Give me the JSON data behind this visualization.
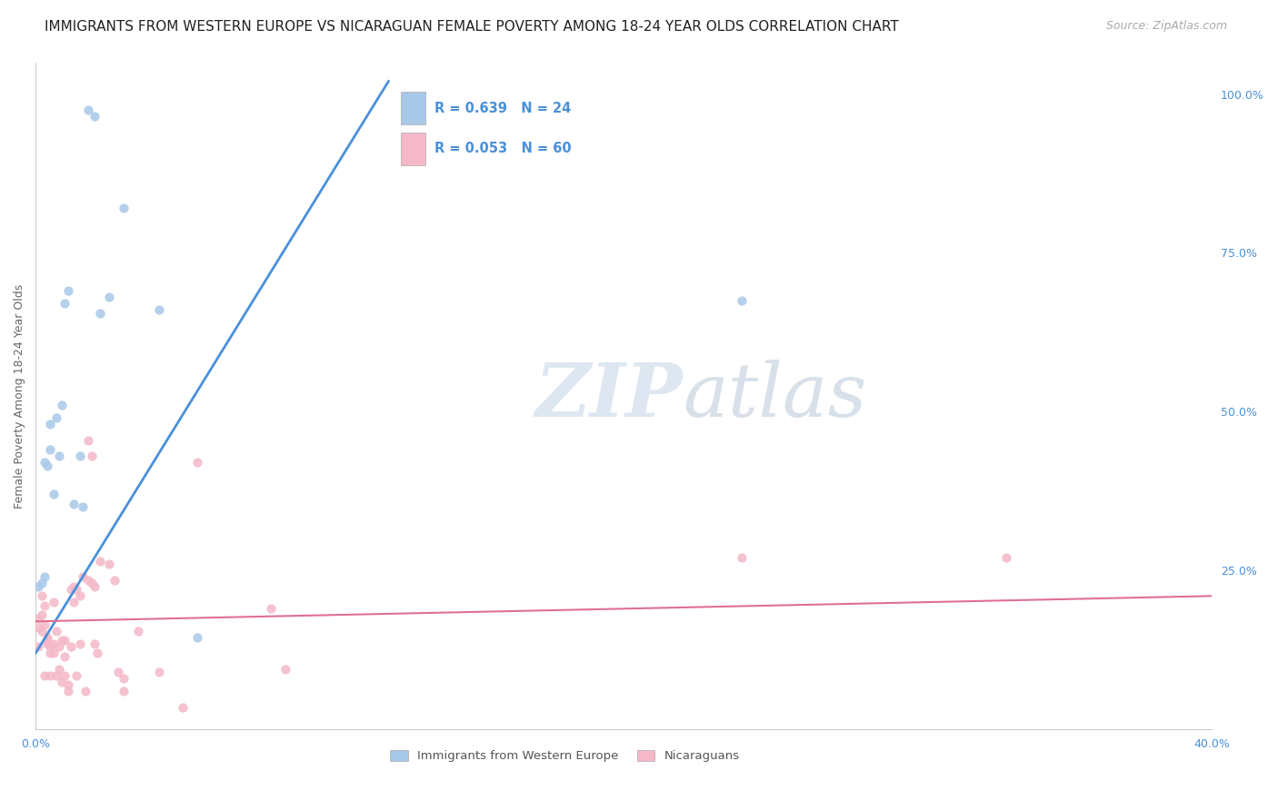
{
  "title": "IMMIGRANTS FROM WESTERN EUROPE VS NICARAGUAN FEMALE POVERTY AMONG 18-24 YEAR OLDS CORRELATION CHART",
  "source": "Source: ZipAtlas.com",
  "ylabel": "Female Poverty Among 18-24 Year Olds",
  "xlim": [
    0.0,
    0.4
  ],
  "ylim": [
    0.0,
    1.05
  ],
  "xtick_positions": [
    0.0,
    0.1,
    0.2,
    0.3,
    0.4
  ],
  "xticklabels": [
    "0.0%",
    "",
    "",
    "",
    "40.0%"
  ],
  "ytick_positions": [
    0.0,
    0.25,
    0.5,
    0.75,
    1.0
  ],
  "yticklabels_right": [
    "",
    "25.0%",
    "50.0%",
    "75.0%",
    "100.0%"
  ],
  "watermark_zip": "ZIP",
  "watermark_atlas": "atlas",
  "blue_color": "#a8c8e8",
  "pink_color": "#f4b8c8",
  "blue_line_color": "#4a90d9",
  "pink_line_color": "#e07090",
  "legend_blue_r": "R = 0.639",
  "legend_blue_n": "N = 24",
  "legend_pink_r": "R = 0.053",
  "legend_pink_n": "N = 60",
  "blue_dots_x": [
    0.001,
    0.002,
    0.003,
    0.003,
    0.004,
    0.005,
    0.005,
    0.006,
    0.007,
    0.008,
    0.009,
    0.01,
    0.011,
    0.013,
    0.015,
    0.016,
    0.018,
    0.02,
    0.022,
    0.025,
    0.03,
    0.042,
    0.055,
    0.24
  ],
  "blue_dots_y": [
    0.225,
    0.23,
    0.24,
    0.42,
    0.415,
    0.44,
    0.48,
    0.37,
    0.49,
    0.43,
    0.51,
    0.67,
    0.69,
    0.355,
    0.43,
    0.35,
    0.975,
    0.965,
    0.655,
    0.68,
    0.82,
    0.66,
    0.145,
    0.675
  ],
  "pink_dots_x": [
    0.001,
    0.001,
    0.001,
    0.002,
    0.002,
    0.002,
    0.003,
    0.003,
    0.003,
    0.004,
    0.004,
    0.004,
    0.005,
    0.005,
    0.005,
    0.006,
    0.006,
    0.006,
    0.007,
    0.007,
    0.008,
    0.008,
    0.009,
    0.009,
    0.01,
    0.01,
    0.01,
    0.011,
    0.011,
    0.012,
    0.012,
    0.013,
    0.013,
    0.014,
    0.014,
    0.015,
    0.015,
    0.016,
    0.017,
    0.018,
    0.018,
    0.019,
    0.019,
    0.02,
    0.02,
    0.021,
    0.022,
    0.025,
    0.027,
    0.028,
    0.03,
    0.03,
    0.035,
    0.042,
    0.05,
    0.055,
    0.08,
    0.085,
    0.24,
    0.33
  ],
  "pink_dots_y": [
    0.175,
    0.16,
    0.13,
    0.21,
    0.18,
    0.155,
    0.195,
    0.165,
    0.085,
    0.14,
    0.145,
    0.135,
    0.13,
    0.12,
    0.085,
    0.2,
    0.135,
    0.12,
    0.155,
    0.085,
    0.13,
    0.095,
    0.14,
    0.075,
    0.14,
    0.085,
    0.115,
    0.07,
    0.06,
    0.13,
    0.22,
    0.225,
    0.2,
    0.22,
    0.085,
    0.21,
    0.135,
    0.24,
    0.06,
    0.235,
    0.455,
    0.43,
    0.23,
    0.225,
    0.135,
    0.12,
    0.265,
    0.26,
    0.235,
    0.09,
    0.08,
    0.06,
    0.155,
    0.09,
    0.035,
    0.42,
    0.19,
    0.095,
    0.27,
    0.27
  ],
  "blue_trend_x": [
    0.0,
    0.12
  ],
  "blue_trend_y": [
    0.12,
    1.02
  ],
  "pink_trend_x": [
    0.0,
    0.4
  ],
  "pink_trend_y": [
    0.17,
    0.21
  ],
  "title_fontsize": 11,
  "source_fontsize": 9,
  "label_fontsize": 9,
  "tick_fontsize": 9,
  "dot_size": 55,
  "background_color": "#ffffff",
  "grid_color": "#d0d0d0"
}
